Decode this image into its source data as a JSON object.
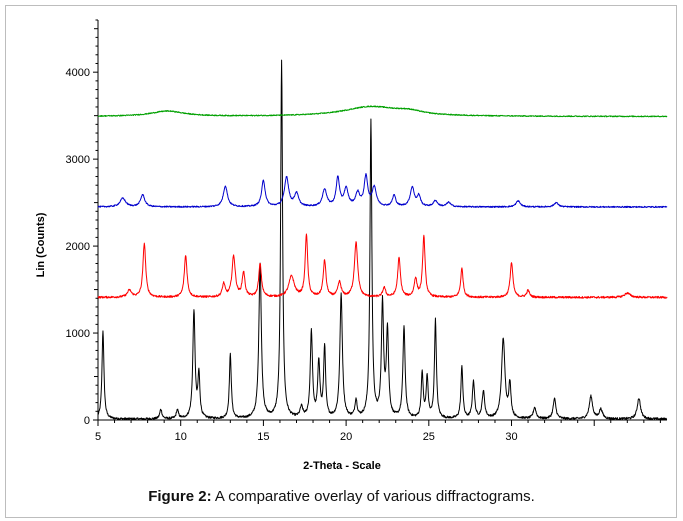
{
  "caption": {
    "label": "Figure 2:",
    "text": "A comparative overlay of various diffractograms."
  },
  "chart_data": {
    "type": "line",
    "title": "",
    "xlabel": "2-Theta - Scale",
    "ylabel": "Lin (Counts)",
    "xlim": [
      5,
      39.4
    ],
    "ylim": [
      0,
      4600
    ],
    "x_ticks": [
      5,
      10,
      15,
      20,
      25,
      30
    ],
    "y_ticks": [
      0,
      1000,
      2000,
      3000,
      4000
    ],
    "grid": false,
    "legend": "none",
    "series": [
      {
        "color": "#000000",
        "baseline": 10,
        "noise": 25,
        "peaks": [
          [
            5.3,
            1020,
            0.07
          ],
          [
            8.8,
            110,
            0.08
          ],
          [
            9.8,
            100,
            0.08
          ],
          [
            10.8,
            1240,
            0.08
          ],
          [
            11.1,
            500,
            0.07
          ],
          [
            13.0,
            740,
            0.07
          ],
          [
            14.8,
            1780,
            0.09
          ],
          [
            16.1,
            4100,
            0.07
          ],
          [
            17.3,
            120,
            0.1
          ],
          [
            17.9,
            990,
            0.08
          ],
          [
            18.35,
            640,
            0.08
          ],
          [
            18.7,
            820,
            0.07
          ],
          [
            19.7,
            1420,
            0.09
          ],
          [
            20.6,
            200,
            0.08
          ],
          [
            21.5,
            3420,
            0.07
          ],
          [
            22.2,
            1300,
            0.08
          ],
          [
            22.5,
            1000,
            0.08
          ],
          [
            23.5,
            1050,
            0.08
          ],
          [
            24.6,
            520,
            0.07
          ],
          [
            24.9,
            470,
            0.07
          ],
          [
            25.4,
            1130,
            0.07
          ],
          [
            27.0,
            600,
            0.07
          ],
          [
            27.7,
            430,
            0.08
          ],
          [
            28.3,
            310,
            0.09
          ],
          [
            29.5,
            920,
            0.12
          ],
          [
            29.9,
            380,
            0.08
          ],
          [
            31.4,
            130,
            0.1
          ],
          [
            32.6,
            230,
            0.1
          ],
          [
            34.8,
            260,
            0.12
          ],
          [
            35.4,
            110,
            0.12
          ],
          [
            37.7,
            240,
            0.12
          ]
        ]
      },
      {
        "color": "#ff0000",
        "baseline": 1410,
        "noise": 22,
        "peaks": [
          [
            6.9,
            80,
            0.15
          ],
          [
            7.8,
            620,
            0.1
          ],
          [
            10.3,
            480,
            0.1
          ],
          [
            12.6,
            150,
            0.1
          ],
          [
            13.2,
            470,
            0.12
          ],
          [
            13.8,
            280,
            0.1
          ],
          [
            14.8,
            380,
            0.1
          ],
          [
            16.7,
            240,
            0.2
          ],
          [
            17.6,
            720,
            0.09
          ],
          [
            18.7,
            420,
            0.1
          ],
          [
            19.6,
            170,
            0.12
          ],
          [
            20.6,
            630,
            0.12
          ],
          [
            22.3,
            110,
            0.1
          ],
          [
            23.2,
            450,
            0.1
          ],
          [
            24.2,
            210,
            0.1
          ],
          [
            24.7,
            700,
            0.09
          ],
          [
            27.0,
            330,
            0.09
          ],
          [
            30.0,
            400,
            0.1
          ],
          [
            31.0,
            80,
            0.1
          ],
          [
            37.0,
            50,
            0.2
          ]
        ]
      },
      {
        "color": "#0000cc",
        "baseline": 2450,
        "noise": 15,
        "peaks": [
          [
            6.5,
            100,
            0.2
          ],
          [
            7.7,
            140,
            0.15
          ],
          [
            12.7,
            240,
            0.15
          ],
          [
            15.0,
            300,
            0.13
          ],
          [
            16.4,
            340,
            0.15
          ],
          [
            17.0,
            150,
            0.15
          ],
          [
            18.7,
            200,
            0.15
          ],
          [
            19.5,
            330,
            0.12
          ],
          [
            20.0,
            200,
            0.15
          ],
          [
            20.7,
            150,
            0.15
          ],
          [
            21.2,
            340,
            0.13
          ],
          [
            21.7,
            220,
            0.15
          ],
          [
            22.9,
            130,
            0.12
          ],
          [
            24.0,
            220,
            0.15
          ],
          [
            24.4,
            120,
            0.12
          ],
          [
            25.4,
            70,
            0.15
          ],
          [
            26.2,
            50,
            0.15
          ],
          [
            30.4,
            70,
            0.15
          ],
          [
            32.7,
            50,
            0.15
          ]
        ]
      },
      {
        "color": "#00a000",
        "baseline": 3490,
        "noise": 12,
        "peaks": [
          [
            9.2,
            60,
            1.2
          ],
          [
            21.5,
            110,
            2.0
          ],
          [
            23.8,
            40,
            1.0
          ]
        ]
      }
    ]
  }
}
